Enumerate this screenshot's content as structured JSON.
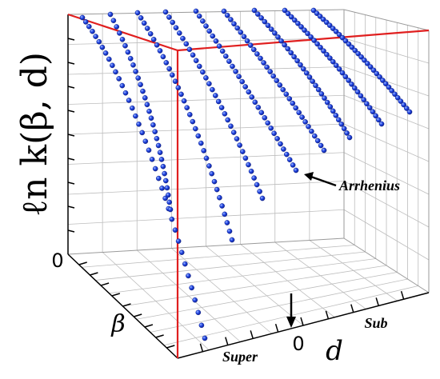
{
  "chart_data": {
    "type": "scatter",
    "projection": "3d",
    "z_label": "ℓn k(β, d)",
    "x_label": "d",
    "y_label": "β",
    "x_ticklabels": [
      "Super",
      "0",
      "Sub"
    ],
    "y_ticklabels": [
      "0"
    ],
    "grid": true,
    "box_edge_color": "#e01f1f",
    "marker_color": "#1b3fe0",
    "annotations": [
      {
        "text": "Arrhenius",
        "arrow": "points to the middle curve"
      },
      {
        "text": "",
        "arrow": "down arrow marking d = 0"
      }
    ],
    "series_count": 9
  }
}
